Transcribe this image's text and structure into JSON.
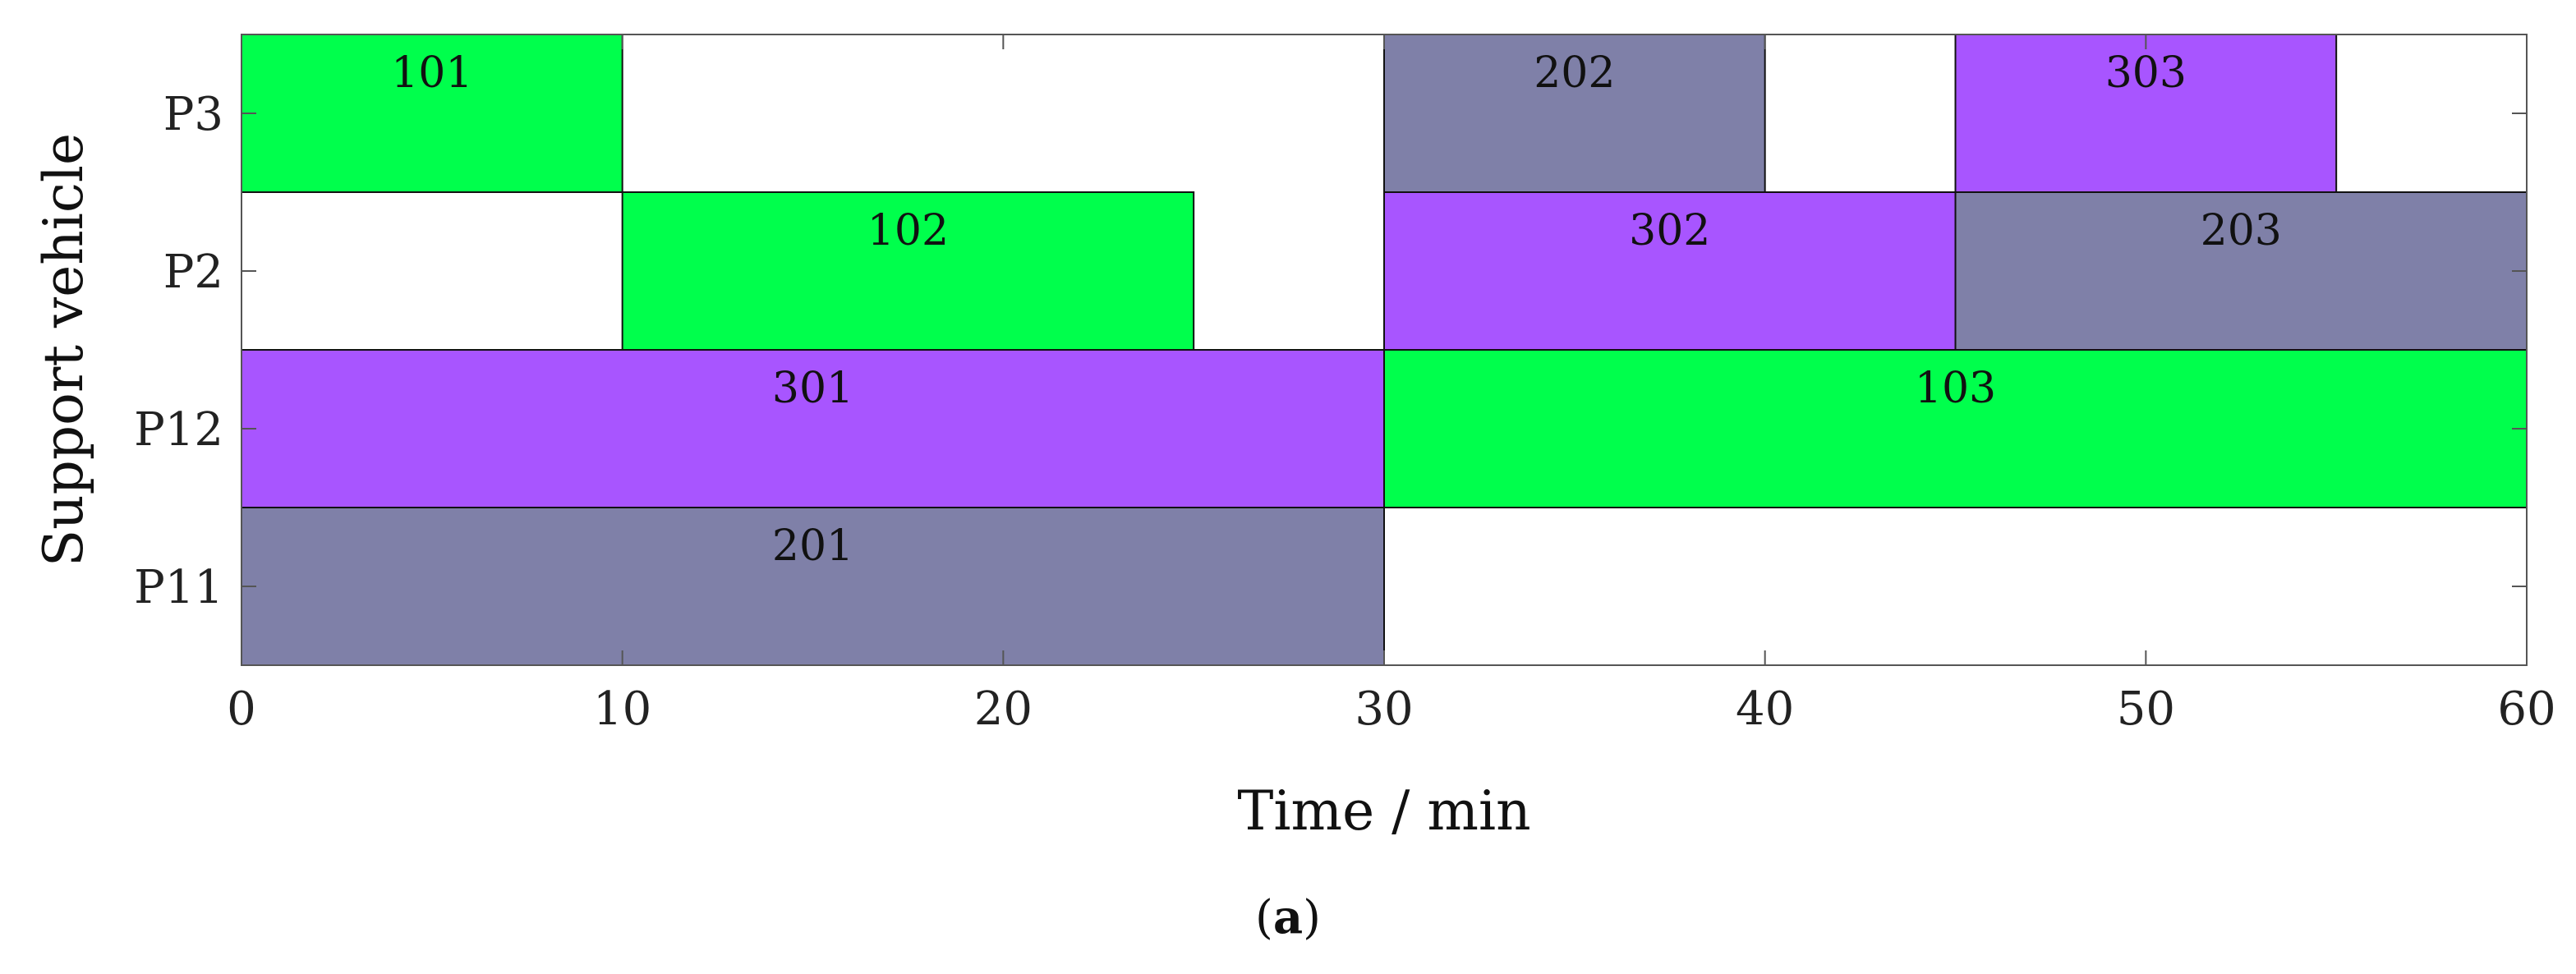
{
  "chart_data": {
    "type": "gantt",
    "xlabel": "Time / min",
    "ylabel": "Support vehicle",
    "xlim": [
      0,
      60
    ],
    "x_ticks": [
      0,
      10,
      20,
      30,
      40,
      50,
      60
    ],
    "rows": [
      "P3",
      "P2",
      "P12",
      "P11"
    ],
    "colors": {
      "green": "#00ff4c",
      "purple": "#a855ff",
      "gray": "#7f80a8"
    },
    "tasks": [
      {
        "label": "101",
        "row": "P3",
        "start": 0,
        "end": 10,
        "color": "green"
      },
      {
        "label": "202",
        "row": "P3",
        "start": 30,
        "end": 40,
        "color": "gray"
      },
      {
        "label": "303",
        "row": "P3",
        "start": 45,
        "end": 55,
        "color": "purple"
      },
      {
        "label": "102",
        "row": "P2",
        "start": 10,
        "end": 25,
        "color": "green"
      },
      {
        "label": "302",
        "row": "P2",
        "start": 30,
        "end": 45,
        "color": "purple"
      },
      {
        "label": "203",
        "row": "P2",
        "start": 45,
        "end": 60,
        "color": "gray"
      },
      {
        "label": "301",
        "row": "P12",
        "start": 0,
        "end": 30,
        "color": "purple"
      },
      {
        "label": "103",
        "row": "P12",
        "start": 30,
        "end": 60,
        "color": "green"
      },
      {
        "label": "201",
        "row": "P11",
        "start": 0,
        "end": 30,
        "color": "gray"
      }
    ]
  },
  "caption": {
    "open": "(",
    "letter": "a",
    "close": ")"
  }
}
